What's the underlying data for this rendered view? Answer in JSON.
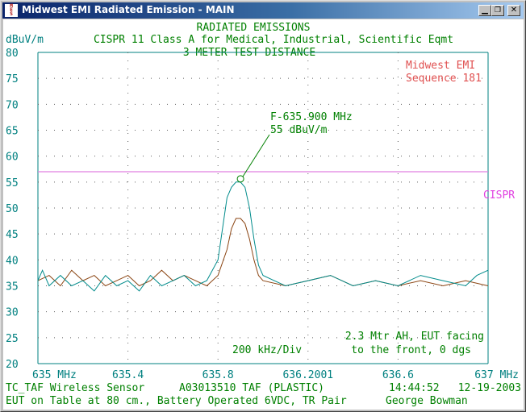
{
  "window": {
    "title": "Midwest EMI Radiated Emission - MAIN",
    "icon_text": [
      "M",
      "E",
      "S"
    ],
    "minimize_icon": "minimize-icon",
    "maximize_icon": "maximize-icon",
    "close_icon": "close-icon"
  },
  "colors": {
    "title_text": "#008000",
    "axis_text": "#008080",
    "limit_line": "#e080e0",
    "trace_peak": "#008b8b",
    "trace_avg": "#8b4513",
    "company": "#e05050"
  },
  "header": {
    "title": "RADIATED EMISSIONS",
    "subtitle": "CISPR 11 Class A for Medical, Industrial, Scientific Eqmt",
    "distance": "3 METER TEST DISTANCE",
    "unit": "dBuV/m"
  },
  "company": {
    "name": "Midwest EMI",
    "sequence": "Sequence 181"
  },
  "marker": {
    "freq_label": "F-635.900 MHz",
    "level_label": "55 dBuV/m",
    "freq": 635.9,
    "level": 55
  },
  "limit_label": "CISPR",
  "div_label": "200 kHz/Div",
  "antenna_note": [
    "2.3 Mtr AH, EUT facing",
    "to the front, 0 dgs"
  ],
  "footer": {
    "eut": "TC_TAF Wireless Sensor",
    "part": "A03013510 TAF (PLASTIC)",
    "time": "14:44:52",
    "date": "12-19-2003",
    "setup": "EUT on Table at 80 cm., Battery Operated 6VDC, TR Pair",
    "operator": "George Bowman"
  },
  "chart_data": {
    "type": "line",
    "title": "RADIATED EMISSIONS",
    "ylabel": "dBuV/m",
    "xlim": [
      635.0,
      637.0
    ],
    "ylim": [
      20,
      80
    ],
    "y_ticks": [
      80,
      75,
      70,
      65,
      60,
      55,
      50,
      45,
      40,
      35,
      30,
      25,
      20
    ],
    "x_tick_labels": [
      "635 MHz",
      "635.4",
      "635.8",
      "636.2001",
      "636.6",
      "637 MHz"
    ],
    "limit": {
      "name": "CISPR",
      "value": 57
    },
    "series": [
      {
        "color": "#008b8b",
        "x": [
          635.0,
          635.02,
          635.05,
          635.1,
          635.15,
          635.2,
          635.25,
          635.3,
          635.35,
          635.4,
          635.45,
          635.5,
          635.55,
          635.6,
          635.65,
          635.7,
          635.75,
          635.8,
          635.82,
          635.84,
          635.86,
          635.88,
          635.9,
          635.92,
          635.94,
          635.96,
          635.98,
          636.0,
          636.05,
          636.1,
          636.2,
          636.3,
          636.4,
          636.5,
          636.6,
          636.7,
          636.8,
          636.9,
          636.95,
          637.0
        ],
        "values": [
          36,
          38,
          35,
          37,
          35,
          36,
          34,
          37,
          35,
          36,
          34,
          37,
          35,
          36,
          37,
          35,
          36,
          40,
          46,
          52,
          54,
          55,
          55,
          54,
          50,
          44,
          39,
          37,
          36,
          35,
          36,
          37,
          35,
          36,
          35,
          37,
          36,
          35,
          37,
          38
        ]
      },
      {
        "color": "#8b4513",
        "x": [
          635.0,
          635.05,
          635.1,
          635.15,
          635.2,
          635.25,
          635.3,
          635.35,
          635.4,
          635.45,
          635.5,
          635.55,
          635.6,
          635.65,
          635.7,
          635.75,
          635.8,
          635.84,
          635.86,
          635.88,
          635.9,
          635.92,
          635.94,
          635.96,
          635.98,
          636.0,
          636.1,
          636.2,
          636.3,
          636.4,
          636.5,
          636.6,
          636.7,
          636.8,
          636.9,
          637.0
        ],
        "values": [
          36,
          37,
          35,
          38,
          36,
          37,
          35,
          36,
          37,
          35,
          36,
          38,
          36,
          37,
          36,
          35,
          37,
          42,
          46,
          48,
          48,
          47,
          44,
          40,
          37,
          36,
          35,
          36,
          37,
          35,
          36,
          35,
          36,
          35,
          36,
          35
        ]
      }
    ]
  }
}
